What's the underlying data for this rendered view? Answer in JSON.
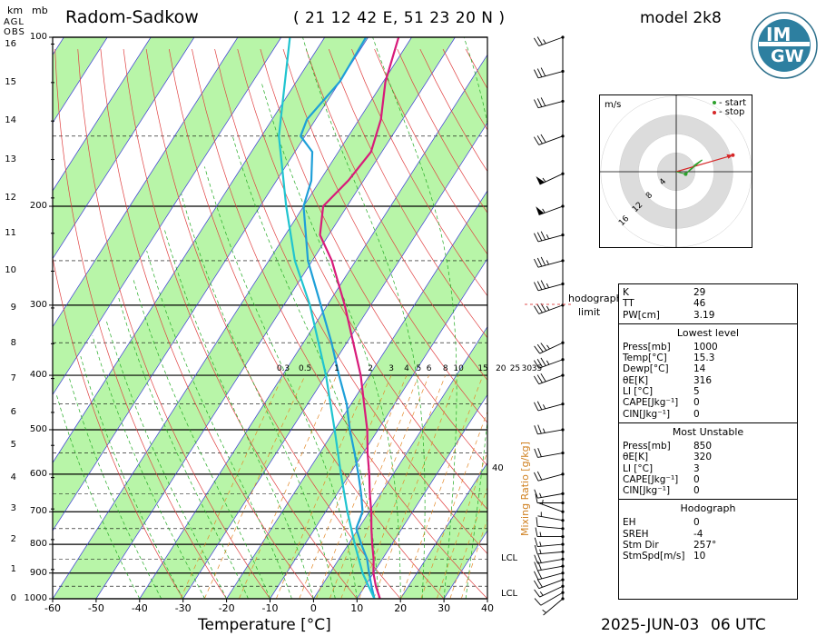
{
  "header": {
    "station": "Radom-Sadkow",
    "coords": "( 21 12 42 E, 51 23 20 N )",
    "model": "model 2k8",
    "date": "2025-JUN-03",
    "time": "06 UTC"
  },
  "logo": {
    "line1": "IM",
    "line2": "GW"
  },
  "left_axis": {
    "unit_km": "km",
    "unit_mb": "mb",
    "agl": "AGL",
    "obs": "OBS",
    "km_ticks": [
      "0",
      "1",
      "2",
      "3",
      "4",
      "5",
      "6",
      "7",
      "8",
      "9",
      "10",
      "11",
      "12",
      "13",
      "14",
      "15",
      "16"
    ],
    "mb_ticks": [
      "100",
      "200",
      "300",
      "400",
      "500",
      "600",
      "700",
      "800",
      "900",
      "1000"
    ]
  },
  "mixing_ratio": {
    "label": "Mixing Ratio [g/kg]",
    "values": [
      "0.3",
      "0.5",
      "1",
      "2",
      "3",
      "4",
      "5",
      "6",
      "8",
      "10",
      "15",
      "20",
      "25",
      "30",
      "35"
    ],
    "theta_label": "40"
  },
  "lcl_labels": [
    "LCL",
    "LCL"
  ],
  "hodograph": {
    "unit": "m/s",
    "legend_start": "- start",
    "legend_stop": "- stop",
    "ring_labels": [
      "4",
      "8",
      "12",
      "16"
    ],
    "limit_label_1": "hodograph",
    "limit_label_2": "limit",
    "points": [
      [
        2.0,
        -0.5
      ],
      [
        4.0,
        1.5
      ],
      [
        5.5,
        2.5
      ],
      [
        10.0,
        2.5
      ],
      [
        12.0,
        3.5
      ]
    ],
    "start_color": "#2ca02c",
    "stop_color": "#d62728"
  },
  "params": {
    "top": [
      {
        "k": "K",
        "v": "29"
      },
      {
        "k": "TT",
        "v": "46"
      },
      {
        "k": "PW[cm]",
        "v": "3.19"
      }
    ],
    "lowest_title": "Lowest level",
    "lowest": [
      {
        "k": "Press[mb]",
        "v": "1000"
      },
      {
        "k": "Temp[°C]",
        "v": "15.3"
      },
      {
        "k": "Dewp[°C]",
        "v": "14"
      },
      {
        "k": "θE[K]",
        "v": "316"
      },
      {
        "k": "LI [°C]",
        "v": "5"
      },
      {
        "k": "CAPE[Jkg⁻¹]",
        "v": "0"
      },
      {
        "k": "CIN[Jkg⁻¹]",
        "v": "0"
      }
    ],
    "unstable_title": "Most Unstable",
    "unstable": [
      {
        "k": "Press[mb]",
        "v": "850"
      },
      {
        "k": "θE[K]",
        "v": "320"
      },
      {
        "k": "LI [°C]",
        "v": "3"
      },
      {
        "k": "CAPE[Jkg⁻¹]",
        "v": "0"
      },
      {
        "k": "CIN[Jkg⁻¹]",
        "v": "0"
      }
    ],
    "hodo_title": "Hodograph",
    "hodo": [
      {
        "k": "EH",
        "v": "0"
      },
      {
        "k": "SREH",
        "v": "-4"
      },
      {
        "k": "Stm Dir",
        "v": "257°"
      },
      {
        "k": "StmSpd[m/s]",
        "v": "10"
      }
    ]
  },
  "chart_data": {
    "type": "line",
    "title": "Radom-Sadkow",
    "xlabel": "Temperature [°C]",
    "ylabel": "mb",
    "x_ticks": [
      -60,
      -50,
      -40,
      -30,
      -20,
      -10,
      0,
      10,
      20,
      30,
      40
    ],
    "xlim": [
      -60,
      40
    ],
    "ylim": [
      1000,
      100
    ],
    "y_scale": "log",
    "series": [
      {
        "name": "",
        "color": "#d81b7a",
        "points": [
          [
            1000,
            15.3
          ],
          [
            950,
            12.5
          ],
          [
            900,
            10.0
          ],
          [
            850,
            8.0
          ],
          [
            800,
            5.5
          ],
          [
            750,
            3.0
          ],
          [
            700,
            0.5
          ],
          [
            650,
            -2.5
          ],
          [
            600,
            -5.5
          ],
          [
            550,
            -9.0
          ],
          [
            500,
            -12.5
          ],
          [
            450,
            -17.0
          ],
          [
            400,
            -22.0
          ],
          [
            350,
            -28.5
          ],
          [
            300,
            -36.0
          ],
          [
            250,
            -45.5
          ],
          [
            225,
            -52.0
          ],
          [
            200,
            -55.5
          ],
          [
            180,
            -53.5
          ],
          [
            160,
            -52.5
          ],
          [
            140,
            -55.0
          ],
          [
            120,
            -59.5
          ],
          [
            100,
            -63.0
          ]
        ]
      },
      {
        "name": "",
        "color": "#1e9fd8",
        "points": [
          [
            1000,
            14.0
          ],
          [
            950,
            11.5
          ],
          [
            900,
            9.0
          ],
          [
            850,
            6.5
          ],
          [
            800,
            3.0
          ],
          [
            750,
            -0.5
          ],
          [
            700,
            -1.5
          ],
          [
            650,
            -4.5
          ],
          [
            600,
            -8.0
          ],
          [
            550,
            -12.0
          ],
          [
            500,
            -16.5
          ],
          [
            450,
            -21.0
          ],
          [
            400,
            -27.0
          ],
          [
            350,
            -33.5
          ],
          [
            300,
            -41.5
          ],
          [
            250,
            -51.0
          ],
          [
            200,
            -60.0
          ],
          [
            180,
            -62.0
          ],
          [
            160,
            -66.0
          ],
          [
            150,
            -71.0
          ],
          [
            140,
            -72.0
          ],
          [
            120,
            -70.0
          ],
          [
            100,
            -70.5
          ]
        ]
      },
      {
        "name": "",
        "color": "#20c4cf",
        "points": [
          [
            1000,
            14.0
          ],
          [
            900,
            7.5
          ],
          [
            800,
            1.5
          ],
          [
            700,
            -5.0
          ],
          [
            600,
            -12.0
          ],
          [
            500,
            -20.0
          ],
          [
            400,
            -30.0
          ],
          [
            300,
            -44.0
          ],
          [
            250,
            -54.0
          ],
          [
            200,
            -64.0
          ],
          [
            150,
            -76.0
          ],
          [
            100,
            -88.0
          ]
        ]
      }
    ],
    "wind_barbs_kt": [
      {
        "p": 1000,
        "dir": 230,
        "spd": 5
      },
      {
        "p": 975,
        "dir": 240,
        "spd": 10
      },
      {
        "p": 950,
        "dir": 245,
        "spd": 15
      },
      {
        "p": 925,
        "dir": 250,
        "spd": 20
      },
      {
        "p": 900,
        "dir": 255,
        "spd": 20
      },
      {
        "p": 875,
        "dir": 260,
        "spd": 20
      },
      {
        "p": 850,
        "dir": 260,
        "spd": 20
      },
      {
        "p": 825,
        "dir": 265,
        "spd": 15
      },
      {
        "p": 800,
        "dir": 265,
        "spd": 15
      },
      {
        "p": 775,
        "dir": 270,
        "spd": 15
      },
      {
        "p": 750,
        "dir": 275,
        "spd": 10
      },
      {
        "p": 725,
        "dir": 280,
        "spd": 5
      },
      {
        "p": 700,
        "dir": 290,
        "spd": 5
      },
      {
        "p": 675,
        "dir": 270,
        "spd": 10
      },
      {
        "p": 650,
        "dir": 260,
        "spd": 15
      },
      {
        "p": 600,
        "dir": 255,
        "spd": 20
      },
      {
        "p": 550,
        "dir": 260,
        "spd": 20
      },
      {
        "p": 500,
        "dir": 260,
        "spd": 25
      },
      {
        "p": 450,
        "dir": 255,
        "spd": 25
      },
      {
        "p": 400,
        "dir": 250,
        "spd": 30
      },
      {
        "p": 375,
        "dir": 250,
        "spd": 35
      },
      {
        "p": 350,
        "dir": 245,
        "spd": 35
      },
      {
        "p": 300,
        "dir": 250,
        "spd": 35
      },
      {
        "p": 275,
        "dir": 255,
        "spd": 35
      },
      {
        "p": 250,
        "dir": 255,
        "spd": 35
      },
      {
        "p": 225,
        "dir": 255,
        "spd": 35
      },
      {
        "p": 200,
        "dir": 250,
        "spd": 55
      },
      {
        "p": 175,
        "dir": 245,
        "spd": 55
      },
      {
        "p": 150,
        "dir": 250,
        "spd": 30
      },
      {
        "p": 130,
        "dir": 255,
        "spd": 30
      },
      {
        "p": 115,
        "dir": 255,
        "spd": 30
      },
      {
        "p": 100,
        "dir": 250,
        "spd": 25
      }
    ]
  },
  "colors": {
    "band_fill": "#b8f5a8",
    "isotherm": "#3a3ad8",
    "dry_adiabat": "#e04040",
    "moist_adiabat": "#22aa22",
    "mixing": "#e48a2a",
    "axis_text": "#000000",
    "mixing_label": "#d08020"
  }
}
